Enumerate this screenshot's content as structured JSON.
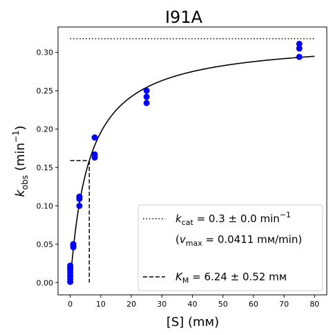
{
  "chart_data": {
    "type": "scatter",
    "title": "I91A",
    "xlabel": "[S] (mм)",
    "ylabel_main": "k",
    "ylabel_sub": "obs",
    "ylabel_unit": "(min",
    "ylabel_exp": "−1",
    "ylabel_close": ")",
    "xlim": [
      -4,
      84
    ],
    "ylim": [
      -0.016,
      0.333
    ],
    "xticks": [
      0,
      10,
      20,
      30,
      40,
      50,
      60,
      70,
      80
    ],
    "yticks": [
      0.0,
      0.05,
      0.1,
      0.15,
      0.2,
      0.25,
      0.3
    ],
    "ytick_labels": [
      "0.00",
      "0.05",
      "0.10",
      "0.15",
      "0.20",
      "0.25",
      "0.30"
    ],
    "grid": false,
    "legend_position": "bottom-right",
    "points": {
      "color": "#0000ff",
      "x": [
        0,
        0,
        0,
        0,
        0,
        0,
        0,
        0,
        1,
        1,
        1,
        3,
        3,
        3,
        8,
        8,
        8,
        25,
        25,
        25,
        75,
        75,
        75
      ],
      "y": [
        0.001,
        0.005,
        0.009,
        0.013,
        0.016,
        0.019,
        0.021,
        0.022,
        0.046,
        0.048,
        0.05,
        0.1,
        0.109,
        0.112,
        0.163,
        0.167,
        0.189,
        0.234,
        0.242,
        0.25,
        0.294,
        0.305,
        0.311
      ]
    },
    "fit": {
      "color": "#000000",
      "kcat": 0.3178,
      "km": 6.24,
      "x_start": 0,
      "x_end": 80
    },
    "kcat_line": {
      "y": 0.3178,
      "x_start": 0,
      "x_end": 80
    },
    "km_line": {
      "x": 6.24,
      "y": 0.1589
    },
    "legend": {
      "kcat_main": "k",
      "kcat_sub": "cat",
      "kcat_value": " = 0.3 ± 0.0 min",
      "kcat_exp": "−1",
      "vmax_open": "(",
      "vmax_main": "v",
      "vmax_sub": "max",
      "vmax_value": " = 0.0411 mм/min)",
      "km_main": "K",
      "km_sub": "M",
      "km_value": " = 6.24 ± 0.52 mм"
    }
  }
}
